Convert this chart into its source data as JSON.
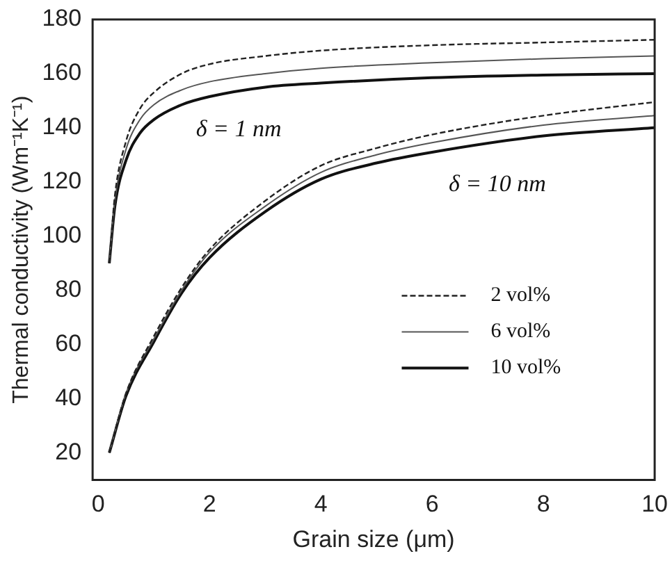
{
  "chart_data": {
    "type": "line",
    "xlabel": "Grain size (μm)",
    "ylabel": "Thermal conductivity (Wm⁻¹K⁻¹)",
    "xlim": [
      -0.1,
      10
    ],
    "xticks": [
      0,
      2,
      4,
      6,
      8,
      10
    ],
    "ylim": [
      10,
      180
    ],
    "yticks": [
      20,
      40,
      60,
      80,
      100,
      120,
      140,
      160,
      180
    ],
    "grid": false,
    "legend": "right",
    "marker": "none",
    "annotations": [
      "δ = 1 nm",
      "δ = 10 nm"
    ],
    "series": [
      {
        "name": "2 vol%",
        "color": "#222222",
        "line_style": "dashed",
        "x": [
          0.2,
          0.3,
          0.5,
          0.75,
          1,
          1.5,
          2,
          3,
          4,
          6,
          8,
          10
        ],
        "values": [
          90,
          115,
          135,
          147,
          153,
          160,
          163.5,
          166.5,
          168.5,
          170.5,
          171.5,
          172.5
        ]
      },
      {
        "name": "6 vol%",
        "color": "#555555",
        "line_style": "solid",
        "x": [
          0.2,
          0.3,
          0.5,
          0.75,
          1,
          1.5,
          2,
          3,
          4,
          6,
          8,
          10
        ],
        "values": [
          90,
          113,
          132,
          143,
          148.5,
          154,
          157,
          160,
          162,
          164,
          165.5,
          166.5
        ]
      },
      {
        "name": "10 vol%",
        "color": "#111111",
        "line_style": "solid",
        "x": [
          0.2,
          0.3,
          0.5,
          0.75,
          1,
          1.5,
          2,
          3,
          4,
          6,
          8,
          10
        ],
        "values": [
          90,
          111,
          128,
          138,
          143,
          148.5,
          151.5,
          155,
          156.5,
          158.5,
          159.5,
          160
        ]
      },
      {
        "color": "#222222",
        "line_style": "dashed",
        "x": [
          0.2,
          0.5,
          1,
          1.5,
          2,
          3,
          4,
          5,
          6,
          8,
          10
        ],
        "values": [
          20,
          42,
          63,
          81,
          95,
          113,
          126,
          132.5,
          137.5,
          144.5,
          149.5
        ]
      },
      {
        "color": "#555555",
        "line_style": "solid",
        "x": [
          0.2,
          0.5,
          1,
          1.5,
          2,
          3,
          4,
          5,
          6,
          8,
          10
        ],
        "values": [
          20,
          42,
          62,
          80,
          94,
          111,
          123.5,
          130,
          134.5,
          141,
          144.5
        ]
      },
      {
        "color": "#111111",
        "line_style": "solid",
        "x": [
          0.2,
          0.5,
          1,
          1.5,
          2,
          3,
          4,
          5,
          6,
          8,
          10
        ],
        "values": [
          20,
          41,
          61,
          79,
          92,
          109,
          121,
          127,
          131,
          137,
          140
        ]
      }
    ]
  }
}
